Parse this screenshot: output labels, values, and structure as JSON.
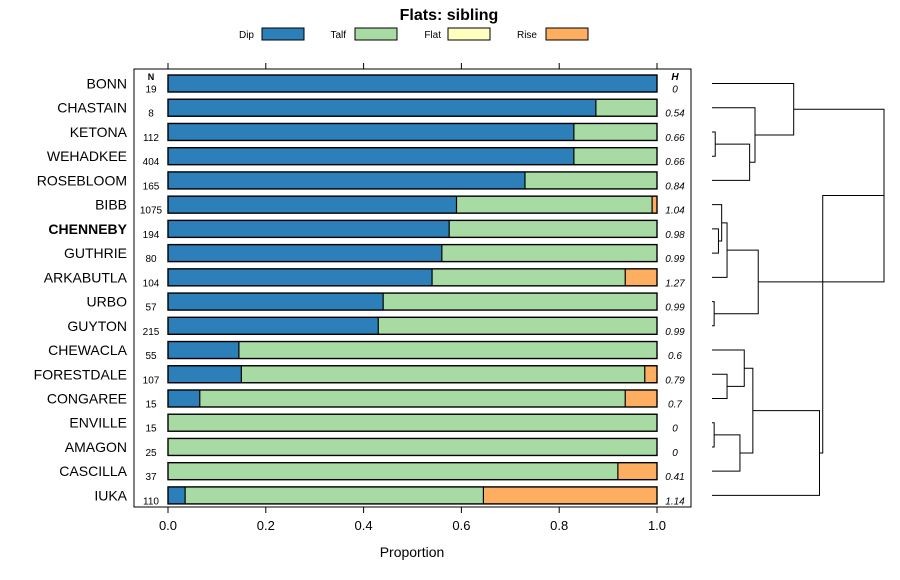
{
  "chart_data": {
    "type": "bar",
    "orientation": "horizontal",
    "stacked": true,
    "title": "Flats: sibling",
    "xlabel": "Proportion",
    "xlim": [
      -0.07,
      1.07
    ],
    "x_ticks": [
      {
        "value": 0.0,
        "label": "0.0"
      },
      {
        "value": 0.2,
        "label": "0.2"
      },
      {
        "value": 0.4,
        "label": "0.4"
      },
      {
        "value": 0.6,
        "label": "0.6"
      },
      {
        "value": 0.8,
        "label": "0.8"
      },
      {
        "value": 1.0,
        "label": "1.0"
      }
    ],
    "legend_position": "top",
    "series": [
      {
        "name": "Dip",
        "color": "#2c7fb8"
      },
      {
        "name": "Talf",
        "color": "#a8dba3"
      },
      {
        "name": "Flat",
        "color": "#ffffbf"
      },
      {
        "name": "Rise",
        "color": "#fdae61"
      }
    ],
    "n_header": "N",
    "h_header": "H",
    "rows": [
      {
        "name": "BONN",
        "bold": false,
        "n": "19",
        "h": "0",
        "values": [
          1.0,
          0.0,
          0,
          0.0
        ]
      },
      {
        "name": "CHASTAIN",
        "bold": false,
        "n": "8",
        "h": "0.54",
        "values": [
          0.875,
          0.125,
          0,
          0.0
        ]
      },
      {
        "name": "KETONA",
        "bold": false,
        "n": "112",
        "h": "0.66",
        "values": [
          0.83,
          0.17,
          0,
          0.0
        ]
      },
      {
        "name": "WEHADKEE",
        "bold": false,
        "n": "404",
        "h": "0.66",
        "values": [
          0.83,
          0.17,
          0,
          0.0
        ]
      },
      {
        "name": "ROSEBLOOM",
        "bold": false,
        "n": "165",
        "h": "0.84",
        "values": [
          0.73,
          0.27,
          0,
          0.0
        ]
      },
      {
        "name": "BIBB",
        "bold": false,
        "n": "1075",
        "h": "1.04",
        "values": [
          0.59,
          0.4,
          0,
          0.01
        ]
      },
      {
        "name": "CHENNEBY",
        "bold": true,
        "n": "194",
        "h": "0.98",
        "values": [
          0.575,
          0.425,
          0,
          0.0
        ]
      },
      {
        "name": "GUTHRIE",
        "bold": false,
        "n": "80",
        "h": "0.99",
        "values": [
          0.56,
          0.44,
          0,
          0.0
        ]
      },
      {
        "name": "ARKABUTLA",
        "bold": false,
        "n": "104",
        "h": "1.27",
        "values": [
          0.54,
          0.395,
          0,
          0.065
        ]
      },
      {
        "name": "URBO",
        "bold": false,
        "n": "57",
        "h": "0.99",
        "values": [
          0.44,
          0.56,
          0,
          0.0
        ]
      },
      {
        "name": "GUYTON",
        "bold": false,
        "n": "215",
        "h": "0.99",
        "values": [
          0.43,
          0.57,
          0,
          0.0
        ]
      },
      {
        "name": "CHEWACLA",
        "bold": false,
        "n": "55",
        "h": "0.6",
        "values": [
          0.145,
          0.855,
          0,
          0.0
        ]
      },
      {
        "name": "FORESTDALE",
        "bold": false,
        "n": "107",
        "h": "0.79",
        "values": [
          0.15,
          0.825,
          0,
          0.025
        ]
      },
      {
        "name": "CONGAREE",
        "bold": false,
        "n": "15",
        "h": "0.7",
        "values": [
          0.065,
          0.87,
          0,
          0.065
        ]
      },
      {
        "name": "ENVILLE",
        "bold": false,
        "n": "15",
        "h": "0",
        "values": [
          0.0,
          1.0,
          0,
          0.0
        ]
      },
      {
        "name": "AMAGON",
        "bold": false,
        "n": "25",
        "h": "0",
        "values": [
          0.0,
          1.0,
          0,
          0.0
        ]
      },
      {
        "name": "CASCILLA",
        "bold": false,
        "n": "37",
        "h": "0.41",
        "values": [
          0.0,
          0.92,
          0,
          0.08
        ]
      },
      {
        "name": "IUKA",
        "bold": false,
        "n": "110",
        "h": "1.14",
        "values": [
          0.035,
          0.61,
          0,
          0.355
        ]
      }
    ],
    "dendrogram": {
      "merges": [
        {
          "left": "r:2",
          "right": "r:3",
          "height": 0.03
        },
        {
          "left": "n:0",
          "right": "r:4",
          "height": 0.35
        },
        {
          "left": "r:1",
          "right": "n:1",
          "height": 0.4
        },
        {
          "left": "r:6",
          "right": "r:7",
          "height": 0.06
        },
        {
          "left": "r:5",
          "right": "n:3",
          "height": 0.09
        },
        {
          "left": "n:4",
          "right": "r:8",
          "height": 0.14
        },
        {
          "left": "r:9",
          "right": "r:10",
          "height": 0.02
        },
        {
          "left": "n:5",
          "right": "n:6",
          "height": 0.43
        },
        {
          "left": "r:0",
          "right": "n:2",
          "height": 0.76
        },
        {
          "left": "n:8",
          "right": "n:7",
          "height": 1.6
        },
        {
          "left": "r:14",
          "right": "r:15",
          "height": 0.02
        },
        {
          "left": "n:10",
          "right": "r:16",
          "height": 0.26
        },
        {
          "left": "r:12",
          "right": "r:13",
          "height": 0.14
        },
        {
          "left": "r:11",
          "right": "n:12",
          "height": 0.3
        },
        {
          "left": "n:13",
          "right": "n:11",
          "height": 0.38
        },
        {
          "left": "n:14",
          "right": "r:17",
          "height": 1.0
        },
        {
          "left": "n:9",
          "right": "n:15",
          "height": 1.03
        }
      ]
    }
  }
}
